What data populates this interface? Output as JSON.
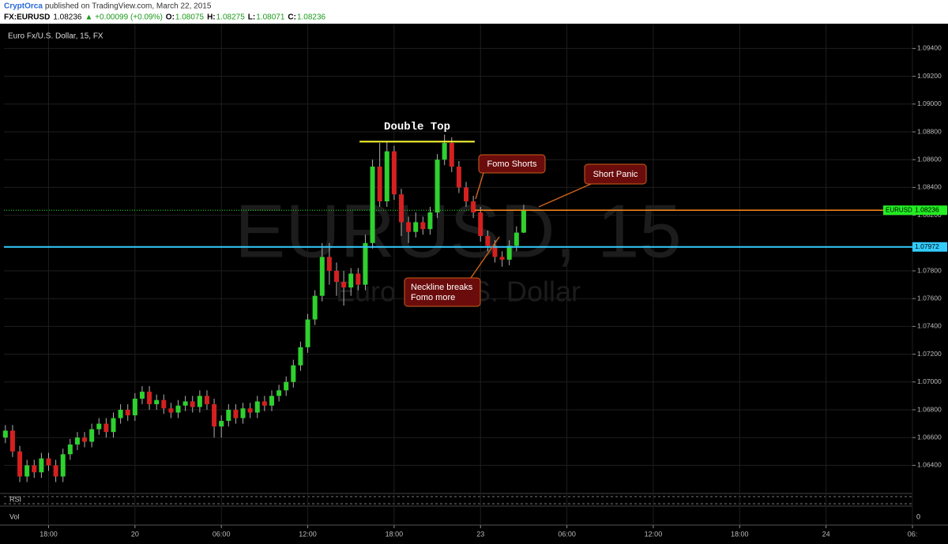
{
  "header": {
    "author": "CryptOrca",
    "published": "published on TradingView.com, March 22, 2015",
    "quote": [
      {
        "text": "FX:EURUSD",
        "color": "#000000",
        "bold": true
      },
      {
        "text": "1.08236",
        "color": "#000000",
        "bold": false
      },
      {
        "text": "▲ +0.00099 (+0.09%)",
        "color": "#1a9a1a",
        "bold": false
      },
      {
        "text": "O:",
        "color": "#000000",
        "bold": true
      },
      {
        "text": "1.08075",
        "color": "#1a9a1a",
        "bold": false
      },
      {
        "text": "H:",
        "color": "#000000",
        "bold": true
      },
      {
        "text": "1.08275",
        "color": "#1a9a1a",
        "bold": false
      },
      {
        "text": "L:",
        "color": "#000000",
        "bold": true
      },
      {
        "text": "1.08071",
        "color": "#1a9a1a",
        "bold": false
      },
      {
        "text": "C:",
        "color": "#000000",
        "bold": true
      },
      {
        "text": "1.08236",
        "color": "#1a9a1a",
        "bold": false
      }
    ]
  },
  "chart_data": {
    "type": "candlestick",
    "title": "Euro Fx/U.S. Dollar, 15, FX",
    "watermark": "EURUSD, 15",
    "watermark_subtitle": "Euro Fx/U.S. Dollar",
    "up_color": "#2fd12f",
    "down_color": "#d42020",
    "wick_color": "#b0b0b0",
    "grid": true,
    "xlim": [
      14.9,
      78
    ],
    "ylim": [
      1.062,
      1.0955
    ],
    "xticks": [
      {
        "value": 18,
        "label": "18:00"
      },
      {
        "value": 24,
        "label": "20"
      },
      {
        "value": 30,
        "label": "06:00"
      },
      {
        "value": 36,
        "label": "12:00"
      },
      {
        "value": 42,
        "label": "18:00"
      },
      {
        "value": 48,
        "label": "23"
      },
      {
        "value": 54,
        "label": "06:00"
      },
      {
        "value": 60,
        "label": "12:00"
      },
      {
        "value": 66,
        "label": "18:00"
      },
      {
        "value": 72,
        "label": "24"
      },
      {
        "value": 78,
        "label": "06:"
      }
    ],
    "yticks": [
      {
        "value": 1.064,
        "label": "1.06400"
      },
      {
        "value": 1.066,
        "label": "1.06600"
      },
      {
        "value": 1.068,
        "label": "1.06800"
      },
      {
        "value": 1.07,
        "label": "1.07000"
      },
      {
        "value": 1.072,
        "label": "1.07200"
      },
      {
        "value": 1.074,
        "label": "1.07400"
      },
      {
        "value": 1.076,
        "label": "1.07600"
      },
      {
        "value": 1.078,
        "label": "1.07800"
      },
      {
        "value": 1.082,
        "label": "1.08200"
      },
      {
        "value": 1.084,
        "label": "1.08400"
      },
      {
        "value": 1.086,
        "label": "1.08600"
      },
      {
        "value": 1.088,
        "label": "1.08800"
      },
      {
        "value": 1.09,
        "label": "1.09000"
      },
      {
        "value": 1.092,
        "label": "1.09200"
      },
      {
        "value": 1.094,
        "label": "1.09400"
      }
    ],
    "x": [
      15,
      15.5,
      16,
      16.5,
      17,
      17.5,
      18,
      18.5,
      19,
      19.5,
      20,
      20.5,
      21,
      21.5,
      22,
      22.5,
      23,
      23.5,
      24,
      24.5,
      25,
      25.5,
      26,
      26.5,
      27,
      27.5,
      28,
      28.5,
      29,
      29.5,
      30,
      30.5,
      31,
      31.5,
      32,
      32.5,
      33,
      33.5,
      34,
      34.5,
      35,
      35.5,
      36,
      36.5,
      37,
      37.5,
      38,
      38.5,
      39,
      39.5,
      40,
      40.5,
      41,
      41.5,
      42,
      42.5,
      43,
      43.5,
      44,
      44.5,
      45,
      45.5,
      46,
      46.5,
      47,
      47.5,
      48,
      48.5,
      49,
      49.5,
      50,
      50.5,
      51
    ],
    "open": [
      1.066,
      1.0665,
      1.065,
      1.0632,
      1.064,
      1.0635,
      1.0645,
      1.064,
      1.0632,
      1.0648,
      1.0655,
      1.066,
      1.0657,
      1.0666,
      1.067,
      1.0664,
      1.0674,
      1.068,
      1.0676,
      1.0688,
      1.0693,
      1.0684,
      1.0687,
      1.0681,
      1.0678,
      1.0683,
      1.0686,
      1.0682,
      1.069,
      1.0684,
      1.0668,
      1.0672,
      1.068,
      1.0674,
      1.0681,
      1.0678,
      1.0686,
      1.0683,
      1.069,
      1.0694,
      1.07,
      1.0712,
      1.0725,
      1.0745,
      1.0762,
      1.079,
      1.078,
      1.0772,
      1.0768,
      1.0778,
      1.077,
      1.08,
      1.0855,
      1.083,
      1.0866,
      1.0835,
      1.0815,
      1.0808,
      1.0815,
      1.081,
      1.0822,
      1.086,
      1.0872,
      1.0855,
      1.084,
      1.083,
      1.0822,
      1.0805,
      1.0798,
      1.079,
      1.0788,
      1.0798,
      1.08075
    ],
    "high": [
      1.0669,
      1.0669,
      1.0654,
      1.0644,
      1.0644,
      1.0649,
      1.0649,
      1.0644,
      1.0652,
      1.0659,
      1.0664,
      1.0664,
      1.067,
      1.0674,
      1.0674,
      1.0678,
      1.0684,
      1.0684,
      1.0692,
      1.0697,
      1.0697,
      1.0691,
      1.0691,
      1.0685,
      1.0687,
      1.069,
      1.069,
      1.0694,
      1.0694,
      1.0688,
      1.0676,
      1.0684,
      1.0684,
      1.0685,
      1.0685,
      1.069,
      1.069,
      1.0694,
      1.0698,
      1.0704,
      1.0716,
      1.0729,
      1.0749,
      1.0766,
      1.08,
      1.08,
      1.0786,
      1.078,
      1.0782,
      1.0782,
      1.0806,
      1.086,
      1.0872,
      1.0873,
      1.087,
      1.0839,
      1.0819,
      1.0822,
      1.0819,
      1.0826,
      1.0864,
      1.0878,
      1.0876,
      1.0859,
      1.0844,
      1.0834,
      1.0826,
      1.0809,
      1.0802,
      1.0794,
      1.0802,
      1.0812,
      1.08275
    ],
    "low": [
      1.0656,
      1.0646,
      1.0628,
      1.0628,
      1.0631,
      1.0631,
      1.0636,
      1.0628,
      1.0628,
      1.0644,
      1.0651,
      1.0653,
      1.0653,
      1.0662,
      1.066,
      1.066,
      1.067,
      1.0672,
      1.0672,
      1.0684,
      1.068,
      1.068,
      1.0677,
      1.0674,
      1.0674,
      1.0679,
      1.0678,
      1.0678,
      1.068,
      1.066,
      1.066,
      1.0668,
      1.067,
      1.067,
      1.0674,
      1.0674,
      1.0679,
      1.0679,
      1.0686,
      1.069,
      1.0696,
      1.0708,
      1.0721,
      1.0741,
      1.0758,
      1.077,
      1.0762,
      1.0755,
      1.0762,
      1.0766,
      1.0766,
      1.0796,
      1.0826,
      1.0826,
      1.0831,
      1.0805,
      1.08,
      1.0804,
      1.0806,
      1.0806,
      1.0818,
      1.0856,
      1.0851,
      1.0836,
      1.0826,
      1.0818,
      1.0801,
      1.0794,
      1.0786,
      1.0783,
      1.0784,
      1.0794,
      1.08071
    ],
    "close": [
      1.0665,
      1.065,
      1.0632,
      1.064,
      1.0635,
      1.0645,
      1.064,
      1.0632,
      1.0648,
      1.0655,
      1.066,
      1.0657,
      1.0666,
      1.067,
      1.0664,
      1.0674,
      1.068,
      1.0676,
      1.0688,
      1.0693,
      1.0684,
      1.0687,
      1.0681,
      1.0678,
      1.0683,
      1.0686,
      1.0682,
      1.069,
      1.0684,
      1.0668,
      1.0672,
      1.068,
      1.0674,
      1.0681,
      1.0678,
      1.0686,
      1.0683,
      1.069,
      1.0694,
      1.07,
      1.0712,
      1.0725,
      1.0745,
      1.0762,
      1.079,
      1.078,
      1.0772,
      1.0768,
      1.0778,
      1.077,
      1.08,
      1.0855,
      1.083,
      1.0866,
      1.0835,
      1.0815,
      1.0808,
      1.0815,
      1.081,
      1.0822,
      1.086,
      1.0872,
      1.0855,
      1.084,
      1.083,
      1.0822,
      1.0805,
      1.0798,
      1.079,
      1.0788,
      1.0798,
      1.08075,
      1.08236
    ],
    "double_top": {
      "text": "Double Top",
      "value": 1.0873,
      "x": [
        39.6,
        47.6
      ],
      "color": "#ffff33"
    },
    "price_line": {
      "value": 1.08236,
      "label": "1.08236",
      "tag": "EURUSD",
      "color": "#22ee22"
    },
    "resistance_line": {
      "value": 1.08236,
      "x": 47.6,
      "color": "#ff8c1a"
    },
    "neckline": {
      "value": 1.07972,
      "label": "1.07972",
      "color": "#33ccff"
    },
    "callouts": [
      "Fomo Shorts",
      "Short Panic",
      "Neckline breaks",
      "Fomo more"
    ],
    "rsi_label": "RSI",
    "volume_label": "Vol",
    "volume_zero": "0"
  }
}
